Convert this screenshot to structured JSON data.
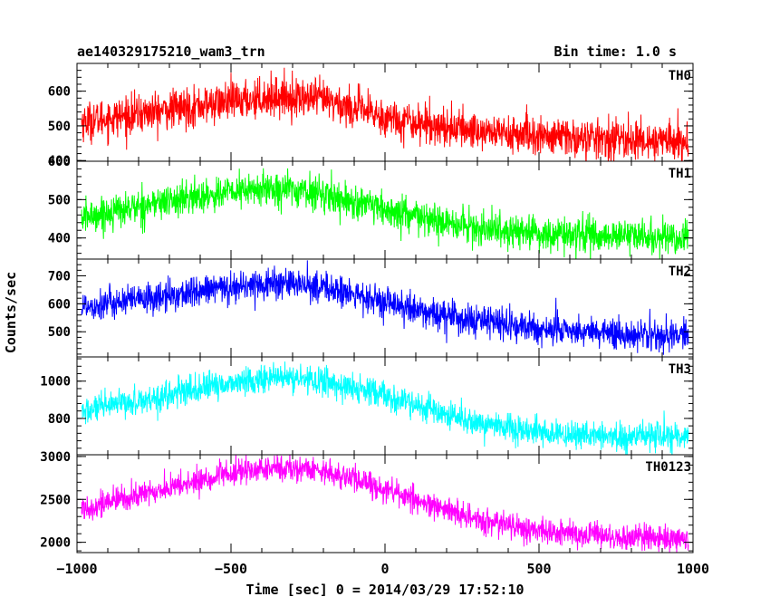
{
  "header": {
    "title": "ae140329175210_wam3_trn",
    "bin_time": "Bin time: 1.0 s"
  },
  "chart_data": {
    "type": "line",
    "xlabel": "Time [sec] 0 = 2014/03/29 17:52:10",
    "ylabel": "Counts/sec",
    "xlim": [
      -1000,
      1000
    ],
    "x_ticks": [
      -1000,
      -500,
      0,
      500,
      1000
    ],
    "x_tick_labels": [
      "−1000",
      "−500",
      "0",
      "500",
      "1000"
    ],
    "x_step": 1,
    "series": [
      {
        "name": "TH0",
        "color": "#ff0000",
        "ylim": [
          398,
          680
        ],
        "y_ticks": [
          400,
          500,
          600
        ],
        "y_tick_labels": [
          "400",
          "500",
          "600"
        ],
        "trend_x": [
          -1000,
          -750,
          -500,
          -350,
          -200,
          0,
          250,
          500,
          750,
          1000
        ],
        "trend_y": [
          510,
          540,
          570,
          585,
          575,
          525,
          490,
          470,
          460,
          455
        ],
        "noise_sd": 28
      },
      {
        "name": "TH1",
        "color": "#00ff00",
        "ylim": [
          345,
          600
        ],
        "y_ticks": [
          400,
          500,
          600
        ],
        "y_tick_labels": [
          "400",
          "500",
          "600"
        ],
        "trend_x": [
          -1000,
          -750,
          -500,
          -350,
          -200,
          0,
          250,
          500,
          750,
          1000
        ],
        "trend_y": [
          450,
          490,
          520,
          530,
          515,
          470,
          430,
          410,
          405,
          400
        ],
        "noise_sd": 22
      },
      {
        "name": "TH2",
        "color": "#0000ff",
        "ylim": [
          410,
          760
        ],
        "y_ticks": [
          500,
          600,
          700
        ],
        "y_tick_labels": [
          "500",
          "600",
          "700"
        ],
        "trend_x": [
          -1000,
          -750,
          -500,
          -350,
          -200,
          0,
          250,
          500,
          750,
          1000
        ],
        "trend_y": [
          590,
          620,
          660,
          675,
          660,
          600,
          545,
          510,
          495,
          485
        ],
        "noise_sd": 28
      },
      {
        "name": "TH3",
        "color": "#00ffff",
        "ylim": [
          605,
          1130
        ],
        "y_ticks": [
          800,
          1000
        ],
        "y_tick_labels": [
          "800",
          "1000"
        ],
        "trend_x": [
          -1000,
          -750,
          -500,
          -350,
          -200,
          0,
          250,
          500,
          750,
          1000
        ],
        "trend_y": [
          830,
          910,
          990,
          1020,
          1000,
          920,
          790,
          720,
          700,
          700
        ],
        "noise_sd": 38
      },
      {
        "name": "TH0123",
        "color": "#ff00ff",
        "ylim": [
          1880,
          3020
        ],
        "y_ticks": [
          2000,
          2500,
          3000
        ],
        "y_tick_labels": [
          "2000",
          "2500",
          "3000"
        ],
        "trend_x": [
          -1000,
          -750,
          -500,
          -350,
          -200,
          0,
          250,
          500,
          750,
          1000
        ],
        "trend_y": [
          2380,
          2590,
          2800,
          2870,
          2840,
          2620,
          2300,
          2130,
          2060,
          2040
        ],
        "noise_sd": 75
      }
    ]
  }
}
